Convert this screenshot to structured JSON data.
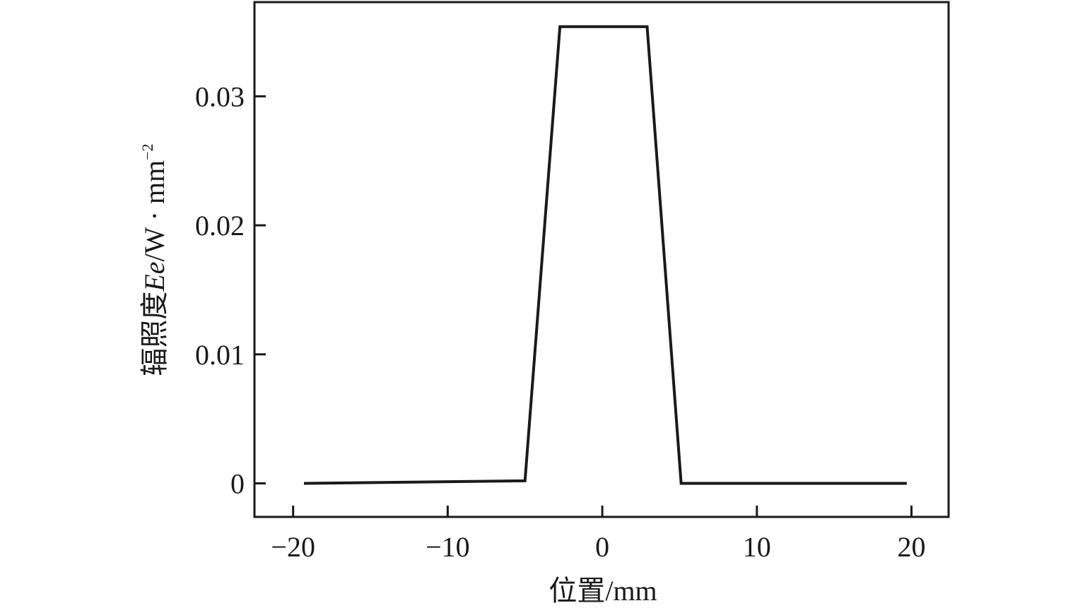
{
  "chart_data": {
    "type": "line",
    "x_label": "位置/mm",
    "y_label": [
      "辐照度",
      "Ee",
      "/W · mm",
      "−2"
    ],
    "series": [
      {
        "color": "#1a1a1a",
        "x": [
          -19.3,
          -5.0,
          -2.74,
          2.9,
          5.1,
          19.7
        ],
        "values": [
          0,
          0.0002,
          0.0354,
          0.0354,
          0,
          0
        ]
      }
    ],
    "xlim": [
      -22.5,
      22.4
    ],
    "ylim": [
      -0.0026,
      0.0373
    ],
    "xticks": [
      {
        "value": -20,
        "label": "−20"
      },
      {
        "value": -10,
        "label": "−10"
      },
      0,
      10,
      20
    ],
    "yticks": [
      0,
      0.01,
      0.02,
      0.03
    ]
  }
}
